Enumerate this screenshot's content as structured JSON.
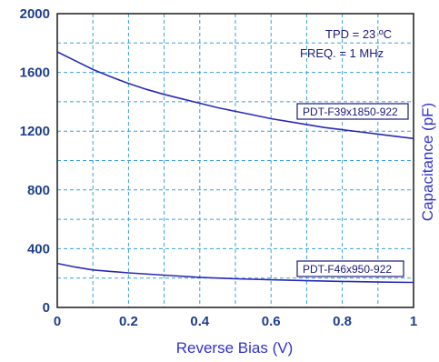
{
  "chart_data": {
    "type": "line",
    "xlabel": "Reverse Bias (V)",
    "ylabel": "Capacitance (pF)",
    "xlim": [
      0,
      1
    ],
    "ylim": [
      0,
      2000
    ],
    "x_ticks": [
      "0",
      "0.2",
      "0.4",
      "0.6",
      "0.8",
      "1"
    ],
    "y_ticks": [
      "0",
      "400",
      "800",
      "1200",
      "1600",
      "2000"
    ],
    "grid": "dashed, minor and major",
    "annotations": [
      "TPD = 23 ºC",
      "FREQ. = 1 MHz"
    ],
    "series": [
      {
        "name": "PDT-F39x1850-922",
        "x": [
          0,
          0.05,
          0.1,
          0.15,
          0.2,
          0.25,
          0.3,
          0.35,
          0.4,
          0.45,
          0.5,
          0.55,
          0.6,
          0.65,
          0.7,
          0.75,
          0.8,
          0.85,
          0.9,
          0.95,
          1.0
        ],
        "values": [
          1740,
          1680,
          1620,
          1570,
          1525,
          1485,
          1450,
          1420,
          1390,
          1360,
          1335,
          1310,
          1285,
          1265,
          1245,
          1225,
          1210,
          1195,
          1180,
          1165,
          1150
        ]
      },
      {
        "name": "PDT-F46x950-922",
        "x": [
          0,
          0.05,
          0.1,
          0.15,
          0.2,
          0.3,
          0.4,
          0.5,
          0.6,
          0.7,
          0.8,
          0.9,
          1.0
        ],
        "values": [
          300,
          275,
          255,
          245,
          235,
          220,
          205,
          195,
          188,
          182,
          177,
          173,
          170
        ]
      }
    ],
    "series_labels": [
      "PDT-F39x1850-922",
      "PDT-F46x950-922"
    ],
    "colors": {
      "line": "#2a2ab8",
      "grid": "#3aa0d8",
      "frame": "#1a1a1a",
      "text": "#1f3f8c"
    }
  }
}
